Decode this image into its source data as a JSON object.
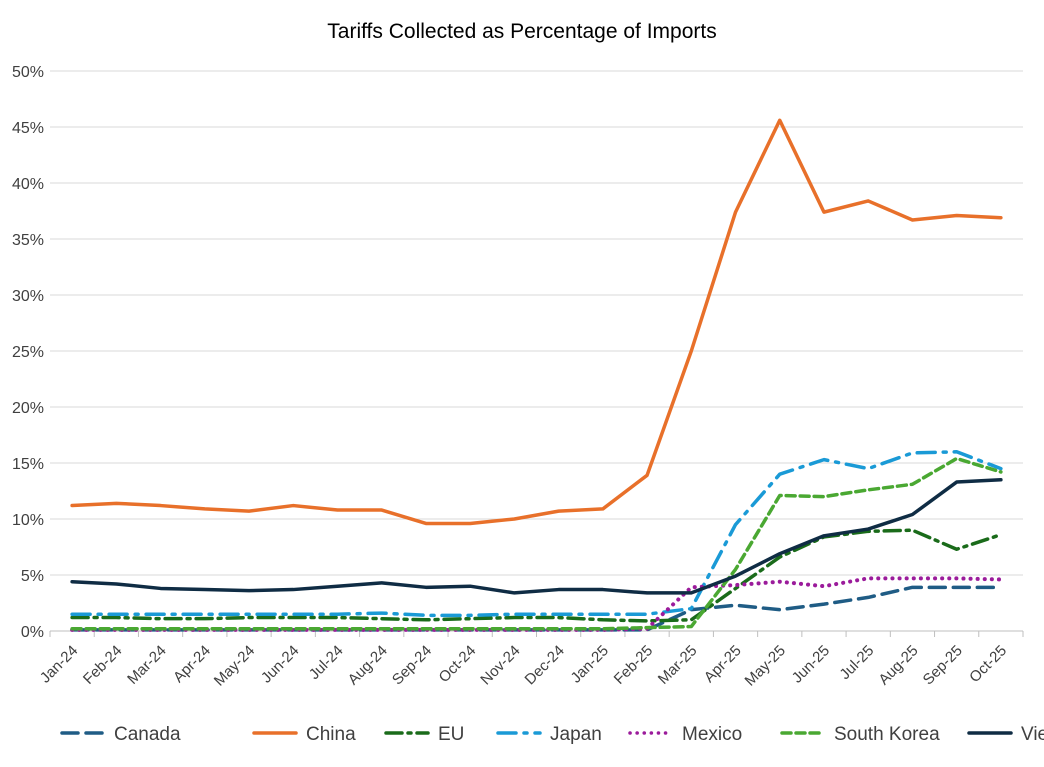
{
  "chart_data": {
    "type": "line",
    "title": "Tariffs Collected as Percentage of Imports",
    "xlabel": "",
    "ylabel": "",
    "ylim": [
      0,
      50
    ],
    "y_ticks": [
      "0%",
      "5%",
      "10%",
      "15%",
      "20%",
      "25%",
      "30%",
      "35%",
      "40%",
      "45%",
      "50%"
    ],
    "grid": "horizontal",
    "legend_position": "bottom",
    "categories": [
      "Jan-24",
      "Feb-24",
      "Mar-24",
      "Apr-24",
      "May-24",
      "Jun-24",
      "Jul-24",
      "Aug-24",
      "Sep-24",
      "Oct-24",
      "Nov-24",
      "Dec-24",
      "Jan-25",
      "Feb-25",
      "Mar-25",
      "Apr-25",
      "May-25",
      "Jun-25",
      "Jul-25",
      "Aug-25",
      "Sep-25",
      "Oct-25"
    ],
    "series": [
      {
        "name": "Canada",
        "color": "#1f5c85",
        "dash": "long-dash",
        "values": [
          0.1,
          0.1,
          0.1,
          0.1,
          0.1,
          0.1,
          0.1,
          0.1,
          0.1,
          0.1,
          0.1,
          0.1,
          0.1,
          0.1,
          1.9,
          2.3,
          1.9,
          2.4,
          3.0,
          3.9,
          3.9,
          3.9
        ]
      },
      {
        "name": "China",
        "color": "#e8702a",
        "dash": "solid",
        "values": [
          11.2,
          11.4,
          11.2,
          10.9,
          10.7,
          11.2,
          10.8,
          10.8,
          9.6,
          9.6,
          10.0,
          10.7,
          10.9,
          13.9,
          25.0,
          37.4,
          45.6,
          37.4,
          38.4,
          36.7,
          37.1,
          36.9
        ]
      },
      {
        "name": "EU",
        "color": "#1a6b1a",
        "dash": "long-dash-dot",
        "values": [
          1.2,
          1.2,
          1.1,
          1.1,
          1.2,
          1.2,
          1.2,
          1.1,
          1.0,
          1.1,
          1.2,
          1.2,
          1.0,
          0.9,
          1.0,
          3.8,
          6.6,
          8.4,
          8.9,
          9.0,
          7.3,
          8.6
        ]
      },
      {
        "name": "Japan",
        "color": "#1a9ad6",
        "dash": "dash-dot",
        "values": [
          1.5,
          1.5,
          1.5,
          1.5,
          1.5,
          1.5,
          1.5,
          1.6,
          1.4,
          1.4,
          1.5,
          1.5,
          1.5,
          1.5,
          2.0,
          9.5,
          14.0,
          15.3,
          14.5,
          15.9,
          16.0,
          14.5
        ]
      },
      {
        "name": "Mexico",
        "color": "#9b1b9b",
        "dash": "dotted",
        "values": [
          0.1,
          0.1,
          0.1,
          0.1,
          0.1,
          0.1,
          0.1,
          0.1,
          0.1,
          0.1,
          0.1,
          0.1,
          0.1,
          0.2,
          3.9,
          4.1,
          4.4,
          4.0,
          4.7,
          4.7,
          4.7,
          4.6
        ]
      },
      {
        "name": "South Korea",
        "color": "#4aa832",
        "dash": "dash",
        "values": [
          0.2,
          0.2,
          0.2,
          0.2,
          0.2,
          0.2,
          0.2,
          0.2,
          0.2,
          0.2,
          0.2,
          0.2,
          0.2,
          0.3,
          0.4,
          5.5,
          12.1,
          12.0,
          12.6,
          13.1,
          15.4,
          14.2
        ]
      },
      {
        "name": "Vietnam",
        "color": "#0f2c44",
        "dash": "solid",
        "values": [
          4.4,
          4.2,
          3.8,
          3.7,
          3.6,
          3.7,
          4.0,
          4.3,
          3.9,
          4.0,
          3.4,
          3.7,
          3.7,
          3.4,
          3.4,
          4.9,
          6.9,
          8.5,
          9.1,
          10.4,
          13.3,
          13.5
        ]
      }
    ]
  }
}
